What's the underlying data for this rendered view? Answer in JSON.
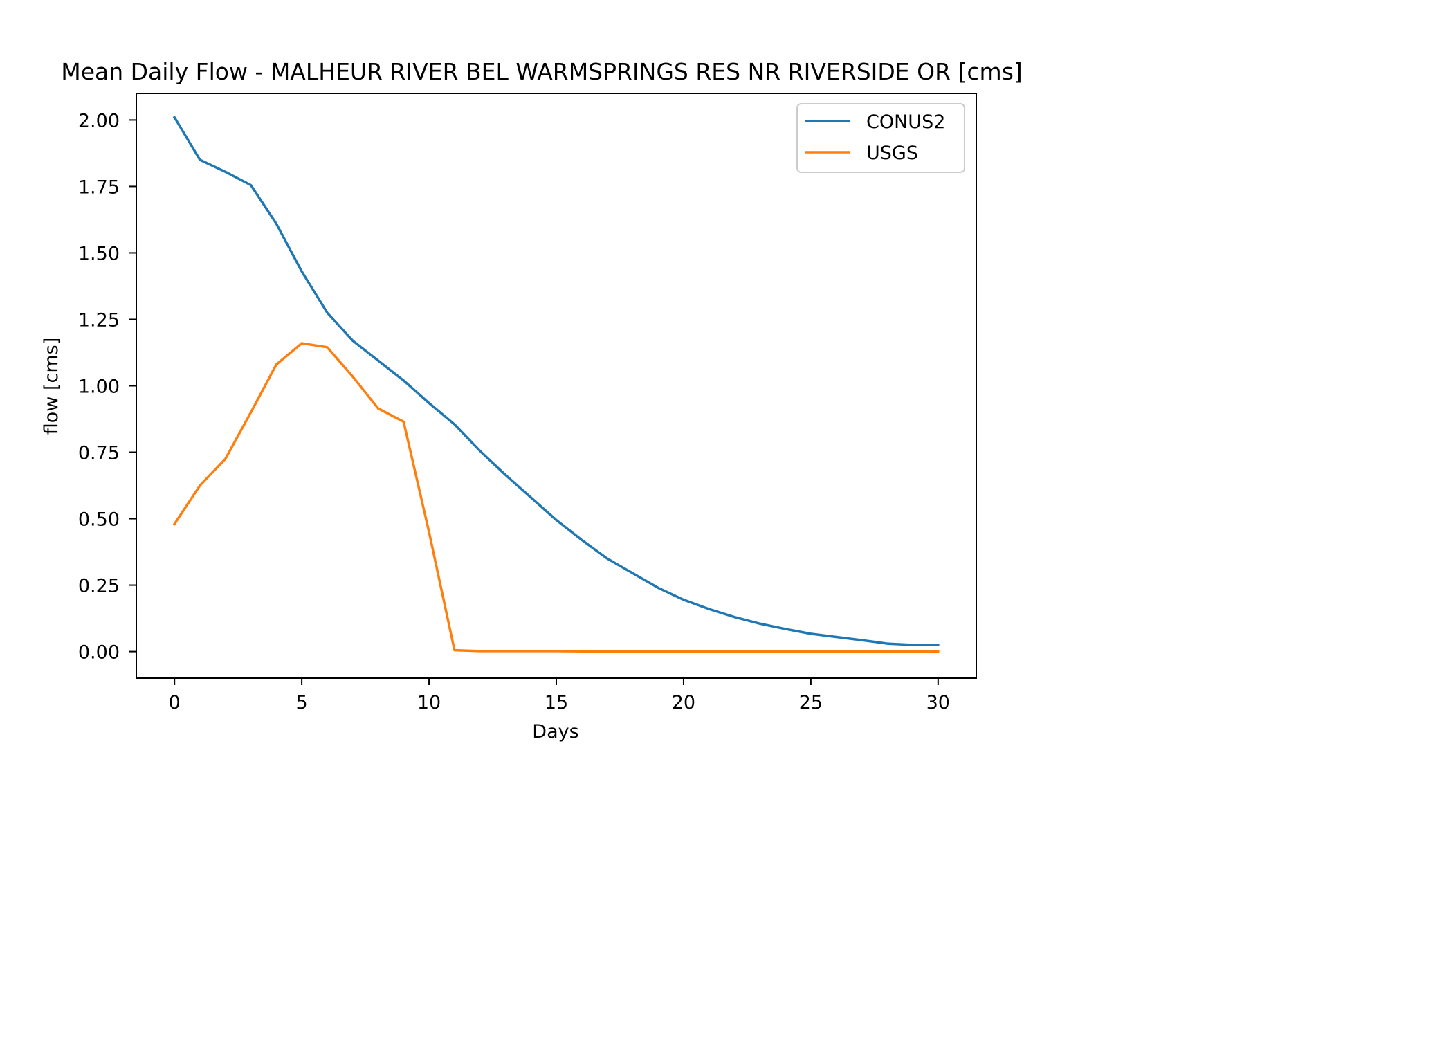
{
  "chart_data": {
    "type": "line",
    "title": "Mean Daily Flow - MALHEUR RIVER BEL WARMSPRINGS RES NR RIVERSIDE OR [cms]",
    "xlabel": "Days",
    "ylabel": "flow [cms]",
    "xlim": [
      -1.5,
      31.5
    ],
    "ylim": [
      -0.1,
      2.1
    ],
    "xticks": [
      0,
      5,
      10,
      15,
      20,
      25,
      30
    ],
    "xtick_labels": [
      "0",
      "5",
      "10",
      "15",
      "20",
      "25",
      "30"
    ],
    "yticks": [
      0,
      0.25,
      0.5,
      0.75,
      1.0,
      1.25,
      1.5,
      1.75,
      2.0
    ],
    "ytick_labels": [
      "0.00",
      "0.25",
      "0.50",
      "0.75",
      "1.00",
      "1.25",
      "1.50",
      "1.75",
      "2.00"
    ],
    "grid": false,
    "legend_position": "top-right",
    "x": [
      0,
      1,
      2,
      3,
      4,
      5,
      6,
      7,
      8,
      9,
      10,
      11,
      12,
      13,
      14,
      15,
      16,
      17,
      18,
      19,
      20,
      21,
      22,
      23,
      24,
      25,
      26,
      27,
      28,
      29,
      30
    ],
    "series": [
      {
        "name": "CONUS2",
        "color": "#1f77b4",
        "values": [
          2.01,
          1.85,
          1.805,
          1.755,
          1.61,
          1.43,
          1.275,
          1.17,
          1.095,
          1.02,
          0.935,
          0.855,
          0.755,
          0.665,
          0.58,
          0.495,
          0.42,
          0.35,
          0.295,
          0.24,
          0.195,
          0.16,
          0.13,
          0.105,
          0.085,
          0.067,
          0.055,
          0.043,
          0.03,
          0.025,
          0.025
        ]
      },
      {
        "name": "USGS",
        "color": "#ff7f0e",
        "values": [
          0.48,
          0.625,
          0.725,
          0.9,
          1.08,
          1.16,
          1.145,
          1.035,
          0.915,
          0.865,
          0.45,
          0.005,
          0.002,
          0.002,
          0.002,
          0.002,
          0.001,
          0.001,
          0.001,
          0.001,
          0.001,
          0.0,
          0.0,
          0.0,
          0.0,
          0.0,
          0.0,
          0.0,
          0.0,
          0.0,
          0.0
        ]
      }
    ]
  }
}
